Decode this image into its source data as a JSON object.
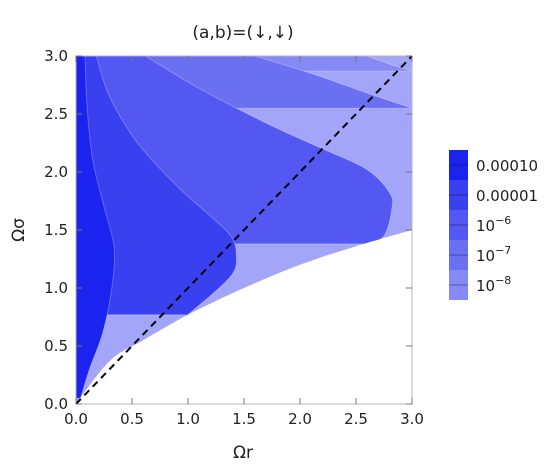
{
  "chart_data": {
    "type": "contour",
    "title": "(a,b)=(↓,↓)",
    "xlabel": "Ωr",
    "ylabel": "Ωσ",
    "xlim": [
      0.0,
      3.0
    ],
    "ylim": [
      0.0,
      3.0
    ],
    "x_ticks": [
      "0.0",
      "0.5",
      "1.0",
      "1.5",
      "2.0",
      "2.5",
      "3.0"
    ],
    "y_ticks": [
      "0.0",
      "0.5",
      "1.0",
      "1.5",
      "2.0",
      "2.5",
      "3.0"
    ],
    "grid": false,
    "legend_position": "right",
    "levels": [
      {
        "label": "0.00010",
        "base": "",
        "exp": "",
        "color": "#1b24ee"
      },
      {
        "label": "0.00001",
        "base": "",
        "exp": "",
        "color": "#3840f0"
      },
      {
        "label": "",
        "base": "10",
        "exp": "−6",
        "color": "#5258f1"
      },
      {
        "label": "",
        "base": "10",
        "exp": "−7",
        "color": "#6b70f3"
      },
      {
        "label": "",
        "base": "10",
        "exp": "−8",
        "color": "#8589f5"
      }
    ],
    "background_region_color": "#a3a6f8",
    "domain_boundary": [
      [
        0,
        0
      ],
      [
        0.3,
        0.37
      ],
      [
        0.6,
        0.55
      ],
      [
        1.0,
        0.77
      ],
      [
        1.5,
        1.0
      ],
      [
        2.0,
        1.2
      ],
      [
        2.5,
        1.36
      ],
      [
        3.0,
        1.5
      ]
    ],
    "contours": [
      {
        "level": "0.00010",
        "points": [
          [
            0.08,
            3.0
          ],
          [
            0.1,
            2.55
          ],
          [
            0.15,
            2.1
          ],
          [
            0.25,
            1.7
          ],
          [
            0.34,
            1.35
          ],
          [
            0.32,
            1.0
          ],
          [
            0.24,
            0.62
          ],
          [
            0.12,
            0.3
          ],
          [
            0.04,
            0.05
          ]
        ]
      },
      {
        "level": "0.00001",
        "points": [
          [
            0.18,
            3.0
          ],
          [
            0.3,
            2.65
          ],
          [
            0.55,
            2.25
          ],
          [
            0.9,
            1.88
          ],
          [
            1.2,
            1.62
          ],
          [
            1.38,
            1.45
          ],
          [
            1.43,
            1.3
          ],
          [
            1.38,
            1.1
          ],
          [
            1.0,
            0.77
          ]
        ]
      },
      {
        "level": "10^-6",
        "points": [
          [
            0.62,
            3.0
          ],
          [
            1.1,
            2.72
          ],
          [
            1.7,
            2.42
          ],
          [
            2.2,
            2.2
          ],
          [
            2.6,
            2.02
          ],
          [
            2.8,
            1.82
          ],
          [
            2.82,
            1.68
          ],
          [
            2.75,
            1.45
          ],
          [
            2.6,
            1.38
          ]
        ]
      },
      {
        "level": "10^-7",
        "points": [
          [
            1.6,
            3.0
          ],
          [
            2.1,
            2.85
          ],
          [
            2.6,
            2.68
          ],
          [
            3.0,
            2.55
          ]
        ]
      },
      {
        "level": "10^-8",
        "points": [
          [
            2.6,
            3.0
          ],
          [
            2.8,
            2.93
          ],
          [
            3.0,
            2.87
          ]
        ]
      }
    ],
    "reference_line": {
      "style": "dashed",
      "color": "#000000",
      "points": [
        [
          0,
          0
        ],
        [
          3,
          3
        ]
      ]
    }
  }
}
